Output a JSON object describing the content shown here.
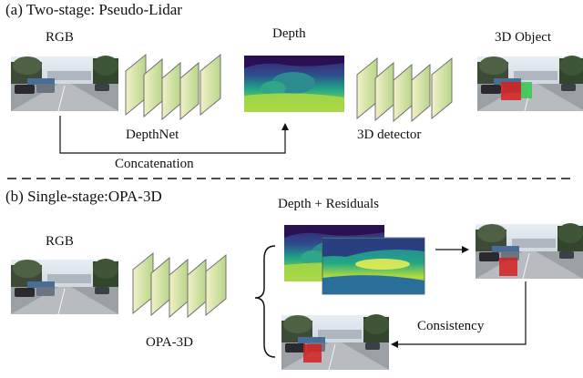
{
  "figure": {
    "part_a": {
      "header": "(a) Two-stage: Pseudo-Lidar",
      "rgb_label": "RGB",
      "depth_label": "Depth",
      "object_label": "3D Object",
      "depthnet_label": "DepthNet",
      "detector_label": "3D detector",
      "concat_label": "Concatenation"
    },
    "part_b": {
      "header": "(b) Single-stage:OPA-3D",
      "rgb_label": "RGB",
      "residual_label": "Depth + Residuals",
      "network_label": "OPA-3D",
      "consistency_label": "Consistency"
    }
  },
  "colors": {
    "layer_light": "#f2f0c8",
    "layer_dark": "#b8d68a",
    "layer_stroke": "#707070",
    "depth_far": "#3d1d6e",
    "depth_mid": "#22a784",
    "depth_near": "#d7e84a",
    "box_red": "#d42020",
    "box_green": "#32c850",
    "arrow": "#111111"
  },
  "icons": [
    "photo-thumbnail",
    "layer-stack",
    "depth-map",
    "curly-brace",
    "arrow"
  ]
}
